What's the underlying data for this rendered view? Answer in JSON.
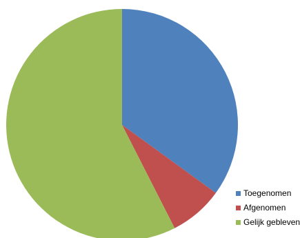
{
  "chart_data": {
    "type": "pie",
    "title": "",
    "slices": [
      {
        "label": "Toegenomen",
        "value": 35,
        "color": "#4F81BD"
      },
      {
        "label": "Afgenomen",
        "value": 7.5,
        "color": "#C0504D"
      },
      {
        "label": "Gelijk gebleven",
        "value": 57.5,
        "color": "#9BBB59"
      }
    ],
    "start_angle": "12 o'clock",
    "direction": "clockwise",
    "legend_position": "bottom-right"
  }
}
